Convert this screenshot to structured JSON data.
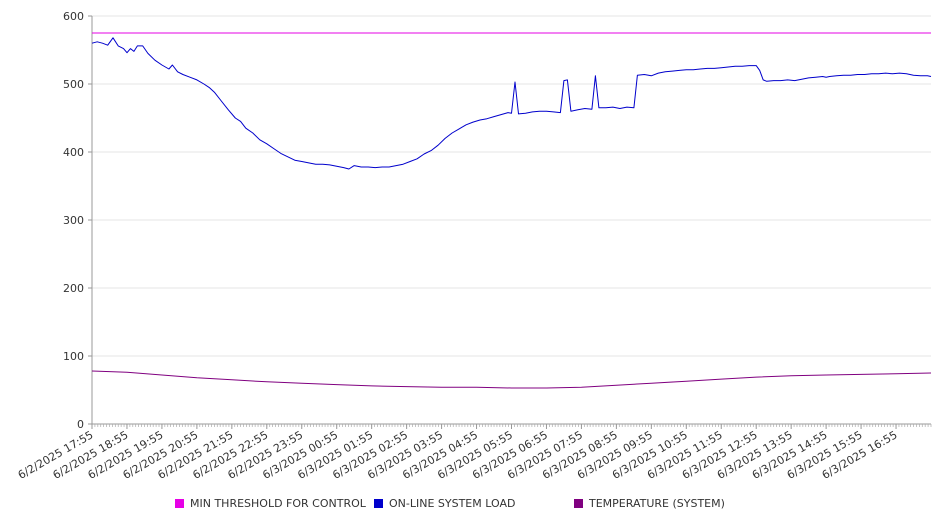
{
  "chart_data": {
    "type": "line",
    "x_labels": [
      "6/2/2025 17:55",
      "6/2/2025 18:55",
      "6/2/2025 19:55",
      "6/2/2025 20:55",
      "6/2/2025 21:55",
      "6/2/2025 22:55",
      "6/2/2025 23:55",
      "6/3/2025 00:55",
      "6/3/2025 01:55",
      "6/3/2025 02:55",
      "6/3/2025 03:55",
      "6/3/2025 04:55",
      "6/3/2025 05:55",
      "6/3/2025 06:55",
      "6/3/2025 07:55",
      "6/3/2025 08:55",
      "6/3/2025 09:55",
      "6/3/2025 10:55",
      "6/3/2025 11:55",
      "6/3/2025 12:55",
      "6/3/2025 13:55",
      "6/3/2025 14:55",
      "6/3/2025 15:55",
      "6/3/2025 16:55"
    ],
    "ylim": [
      0,
      600
    ],
    "yticks": [
      0,
      100,
      200,
      300,
      400,
      500,
      600
    ],
    "grid": true,
    "legend_position": "bottom",
    "series": [
      {
        "name": "MIN THRESHOLD FOR CONTROL",
        "color": "#E600E6",
        "points": [
          [
            0,
            575
          ],
          [
            24,
            575
          ]
        ]
      },
      {
        "name": "ON-LINE SYSTEM LOAD",
        "color": "#0000CC",
        "points": [
          [
            0,
            560
          ],
          [
            0.15,
            562
          ],
          [
            0.3,
            560
          ],
          [
            0.45,
            557
          ],
          [
            0.6,
            568
          ],
          [
            0.75,
            556
          ],
          [
            0.9,
            552
          ],
          [
            1.0,
            546
          ],
          [
            1.1,
            552
          ],
          [
            1.2,
            548
          ],
          [
            1.3,
            556
          ],
          [
            1.45,
            556
          ],
          [
            1.6,
            545
          ],
          [
            1.8,
            535
          ],
          [
            2.0,
            528
          ],
          [
            2.2,
            522
          ],
          [
            2.3,
            528
          ],
          [
            2.45,
            518
          ],
          [
            2.6,
            514
          ],
          [
            2.8,
            510
          ],
          [
            3.0,
            506
          ],
          [
            3.2,
            500
          ],
          [
            3.35,
            495
          ],
          [
            3.5,
            488
          ],
          [
            3.7,
            475
          ],
          [
            3.9,
            462
          ],
          [
            4.1,
            450
          ],
          [
            4.25,
            445
          ],
          [
            4.4,
            435
          ],
          [
            4.6,
            428
          ],
          [
            4.8,
            418
          ],
          [
            5.0,
            412
          ],
          [
            5.2,
            405
          ],
          [
            5.4,
            398
          ],
          [
            5.6,
            393
          ],
          [
            5.8,
            388
          ],
          [
            6.0,
            386
          ],
          [
            6.2,
            384
          ],
          [
            6.4,
            382
          ],
          [
            6.6,
            382
          ],
          [
            6.8,
            381
          ],
          [
            7.0,
            379
          ],
          [
            7.2,
            377
          ],
          [
            7.35,
            375
          ],
          [
            7.5,
            380
          ],
          [
            7.7,
            378
          ],
          [
            7.9,
            378
          ],
          [
            8.1,
            377
          ],
          [
            8.3,
            378
          ],
          [
            8.5,
            378
          ],
          [
            8.7,
            380
          ],
          [
            8.9,
            382
          ],
          [
            9.1,
            386
          ],
          [
            9.3,
            390
          ],
          [
            9.5,
            397
          ],
          [
            9.7,
            402
          ],
          [
            9.9,
            410
          ],
          [
            10.1,
            420
          ],
          [
            10.3,
            428
          ],
          [
            10.5,
            434
          ],
          [
            10.7,
            440
          ],
          [
            10.9,
            444
          ],
          [
            11.1,
            447
          ],
          [
            11.3,
            449
          ],
          [
            11.5,
            452
          ],
          [
            11.7,
            455
          ],
          [
            11.9,
            458
          ],
          [
            12.0,
            457
          ],
          [
            12.1,
            503
          ],
          [
            12.2,
            456
          ],
          [
            12.4,
            457
          ],
          [
            12.6,
            459
          ],
          [
            12.8,
            460
          ],
          [
            13.0,
            460
          ],
          [
            13.2,
            459
          ],
          [
            13.4,
            458
          ],
          [
            13.5,
            505
          ],
          [
            13.6,
            506
          ],
          [
            13.7,
            460
          ],
          [
            13.9,
            462
          ],
          [
            14.1,
            464
          ],
          [
            14.3,
            463
          ],
          [
            14.4,
            512
          ],
          [
            14.5,
            465
          ],
          [
            14.7,
            465
          ],
          [
            14.9,
            466
          ],
          [
            15.1,
            464
          ],
          [
            15.3,
            466
          ],
          [
            15.5,
            465
          ],
          [
            15.6,
            513
          ],
          [
            15.8,
            514
          ],
          [
            16.0,
            512
          ],
          [
            16.2,
            516
          ],
          [
            16.4,
            518
          ],
          [
            16.6,
            519
          ],
          [
            16.8,
            520
          ],
          [
            17.0,
            521
          ],
          [
            17.2,
            521
          ],
          [
            17.4,
            522
          ],
          [
            17.6,
            523
          ],
          [
            17.8,
            523
          ],
          [
            18.0,
            524
          ],
          [
            18.2,
            525
          ],
          [
            18.4,
            526
          ],
          [
            18.6,
            526
          ],
          [
            18.8,
            527
          ],
          [
            19.0,
            527
          ],
          [
            19.1,
            520
          ],
          [
            19.2,
            506
          ],
          [
            19.3,
            504
          ],
          [
            19.5,
            505
          ],
          [
            19.7,
            505
          ],
          [
            19.9,
            506
          ],
          [
            20.1,
            505
          ],
          [
            20.3,
            507
          ],
          [
            20.5,
            509
          ],
          [
            20.7,
            510
          ],
          [
            20.9,
            511
          ],
          [
            21.0,
            510
          ],
          [
            21.1,
            511
          ],
          [
            21.3,
            512
          ],
          [
            21.5,
            513
          ],
          [
            21.7,
            513
          ],
          [
            21.9,
            514
          ],
          [
            22.1,
            514
          ],
          [
            22.3,
            515
          ],
          [
            22.5,
            515
          ],
          [
            22.7,
            516
          ],
          [
            22.9,
            515
          ],
          [
            23.1,
            516
          ],
          [
            23.3,
            515
          ],
          [
            23.5,
            513
          ],
          [
            23.7,
            512
          ],
          [
            23.9,
            512
          ],
          [
            24,
            511
          ]
        ]
      },
      {
        "name": "TEMPERATURE (SYSTEM)",
        "color": "#800080",
        "points": [
          [
            0,
            78
          ],
          [
            1,
            76
          ],
          [
            2,
            72
          ],
          [
            3,
            68
          ],
          [
            4,
            65
          ],
          [
            5,
            62
          ],
          [
            6,
            60
          ],
          [
            7,
            58
          ],
          [
            8,
            56
          ],
          [
            9,
            55
          ],
          [
            10,
            54
          ],
          [
            11,
            54
          ],
          [
            12,
            53
          ],
          [
            13,
            53
          ],
          [
            14,
            54
          ],
          [
            15,
            57
          ],
          [
            16,
            60
          ],
          [
            17,
            63
          ],
          [
            18,
            66
          ],
          [
            19,
            69
          ],
          [
            20,
            71
          ],
          [
            21,
            72
          ],
          [
            22,
            73
          ],
          [
            23,
            74
          ],
          [
            24,
            75
          ]
        ]
      }
    ]
  }
}
